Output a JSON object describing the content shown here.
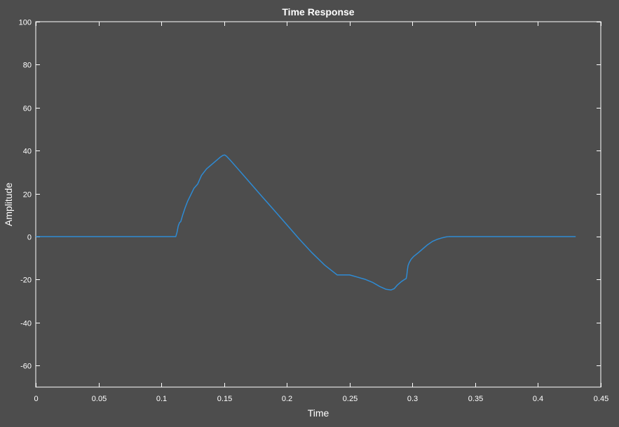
{
  "figure": {
    "background": "#4d4d4d",
    "axes_color": "#ffffff",
    "line_color": "#2e8bd4"
  },
  "chart_data": {
    "type": "line",
    "title": "Time Response",
    "xlabel": "Time",
    "ylabel": "Amplitude",
    "xlim": [
      0,
      0.45
    ],
    "ylim": [
      -70,
      100
    ],
    "xticks": [
      0,
      0.05,
      0.1,
      0.15,
      0.2,
      0.25,
      0.3,
      0.35,
      0.4,
      0.45
    ],
    "xtick_labels": [
      "0",
      "0.05",
      "0.1",
      "0.15",
      "0.2",
      "0.25",
      "0.3",
      "0.35",
      "0.4",
      "0.45"
    ],
    "yticks": [
      -60,
      -40,
      -20,
      0,
      20,
      40,
      60,
      80,
      100
    ],
    "ytick_labels": [
      "-60",
      "-40",
      "-20",
      "0",
      "20",
      "40",
      "60",
      "80",
      "100"
    ],
    "grid": false,
    "series": [
      {
        "color": "#2e8bd4",
        "x": [
          0,
          0.05,
          0.1,
          0.1115,
          0.1125,
          0.1135,
          0.1145,
          0.1155,
          0.117,
          0.119,
          0.121,
          0.1235,
          0.126,
          0.129,
          0.132,
          0.136,
          0.14,
          0.144,
          0.147,
          0.149,
          0.1505,
          0.152,
          0.155,
          0.16,
          0.17,
          0.18,
          0.19,
          0.2,
          0.21,
          0.22,
          0.23,
          0.24,
          0.25,
          0.256,
          0.262,
          0.268,
          0.274,
          0.279,
          0.283,
          0.2855,
          0.288,
          0.291,
          0.2935,
          0.295,
          0.2955,
          0.296,
          0.2965,
          0.2975,
          0.299,
          0.301,
          0.304,
          0.308,
          0.312,
          0.316,
          0.32,
          0.324,
          0.327,
          0.329,
          0.33,
          0.35,
          0.4,
          0.43
        ],
        "y": [
          0,
          0,
          0,
          0,
          2,
          5,
          6.5,
          7,
          10,
          13.5,
          16.5,
          19.5,
          22.5,
          24.5,
          28.5,
          31.5,
          33.5,
          35.5,
          37,
          37.8,
          38,
          37.4,
          35.5,
          32.2,
          25.5,
          18.8,
          12.2,
          5.5,
          -1.2,
          -7.5,
          -13.2,
          -17.8,
          -17.8,
          -18.8,
          -19.8,
          -21.2,
          -23.2,
          -24.5,
          -24.8,
          -24.2,
          -22.5,
          -21,
          -20,
          -19.5,
          -18,
          -15.5,
          -13.5,
          -12,
          -10.5,
          -9.2,
          -7.8,
          -5.8,
          -3.8,
          -2.2,
          -1.2,
          -0.5,
          -0.1,
          0,
          0,
          0,
          0,
          0
        ]
      }
    ]
  }
}
